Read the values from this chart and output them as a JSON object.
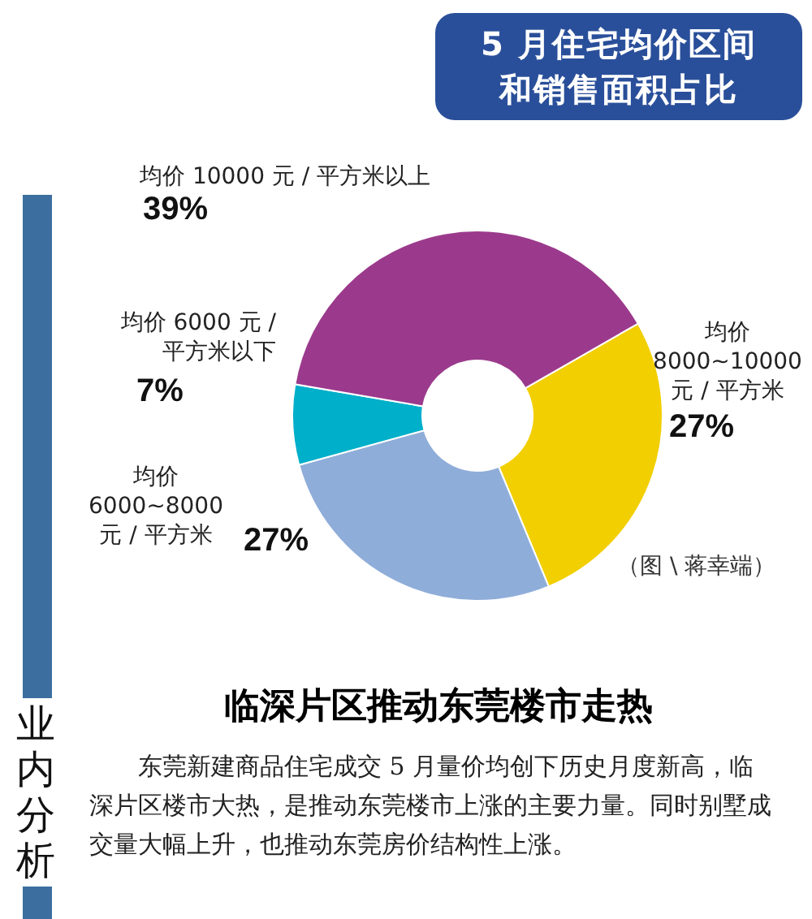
{
  "chart_data": {
    "type": "donut",
    "title": "5 月住宅均价区间和销售面积占比",
    "categories": [
      "均价 8000~10000 元 / 平方米",
      "均价 6000~8000 元 / 平方米",
      "均价 6000 元 / 平方米以下",
      "均价 10000 元 / 平方米以上"
    ],
    "values": [
      27,
      27,
      7,
      39
    ],
    "value_labels": [
      "27%",
      "27%",
      "7%",
      "39%"
    ],
    "colors": [
      "#f2cf00",
      "#8fadd9",
      "#00afc9",
      "#9b3a8c"
    ],
    "annotations": [
      "（图 \\ 蒋幸端）",
      "临深片区推动东莞楼市走热",
      "东莞新建商品住宅成交 5 月量价均创下历史月度新高，临深片区楼市大热，是推动东莞楼市上涨的主要力量。同时别墅成交量大幅上升，也推动东莞房价结构性上涨。",
      "业内分析"
    ]
  }
}
